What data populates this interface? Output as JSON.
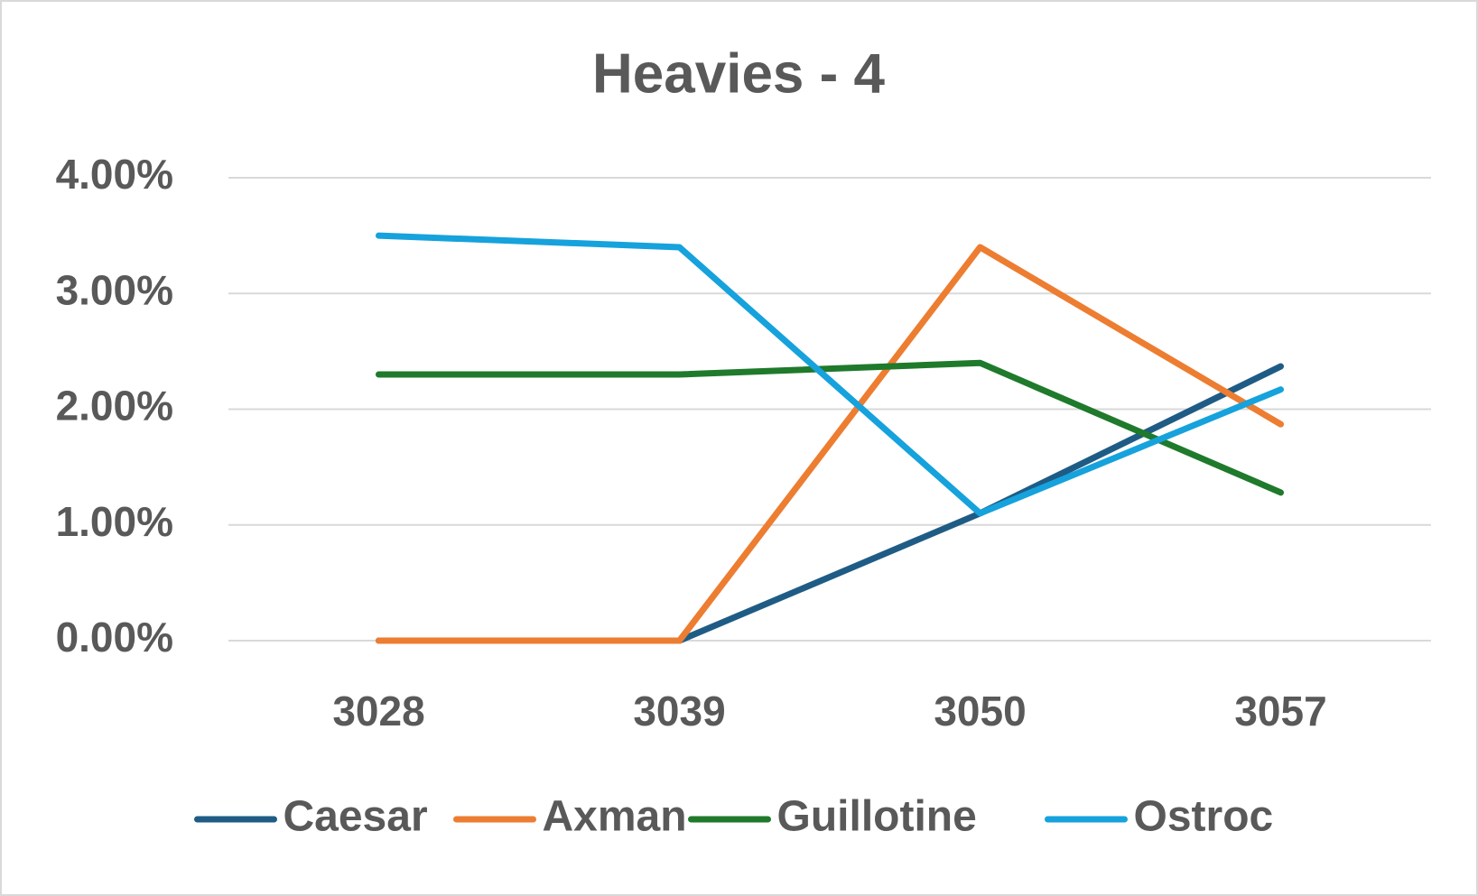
{
  "chart_data": {
    "type": "line",
    "title": "Heavies - 4",
    "categories": [
      "3028",
      "3039",
      "3050",
      "3057"
    ],
    "series": [
      {
        "name": "Caesar",
        "color": "#1f5c85",
        "values": [
          0,
          0,
          1.1,
          2.37
        ]
      },
      {
        "name": "Axman",
        "color": "#ed7d31",
        "values": [
          0,
          0,
          3.4,
          1.87
        ]
      },
      {
        "name": "Guillotine",
        "color": "#1f7a2c",
        "values": [
          2.3,
          2.3,
          2.4,
          1.28
        ]
      },
      {
        "name": "Ostroc",
        "color": "#16a2dc",
        "values": [
          3.5,
          3.4,
          1.1,
          2.17
        ]
      }
    ],
    "ylim": [
      0,
      4
    ],
    "yticks": [
      {
        "value": 0,
        "label": "0.00%"
      },
      {
        "value": 1,
        "label": "1.00%"
      },
      {
        "value": 2,
        "label": "2.00%"
      },
      {
        "value": 3,
        "label": "3.00%"
      },
      {
        "value": 4,
        "label": "4.00%"
      }
    ],
    "grid": true,
    "legend": "bottom"
  }
}
